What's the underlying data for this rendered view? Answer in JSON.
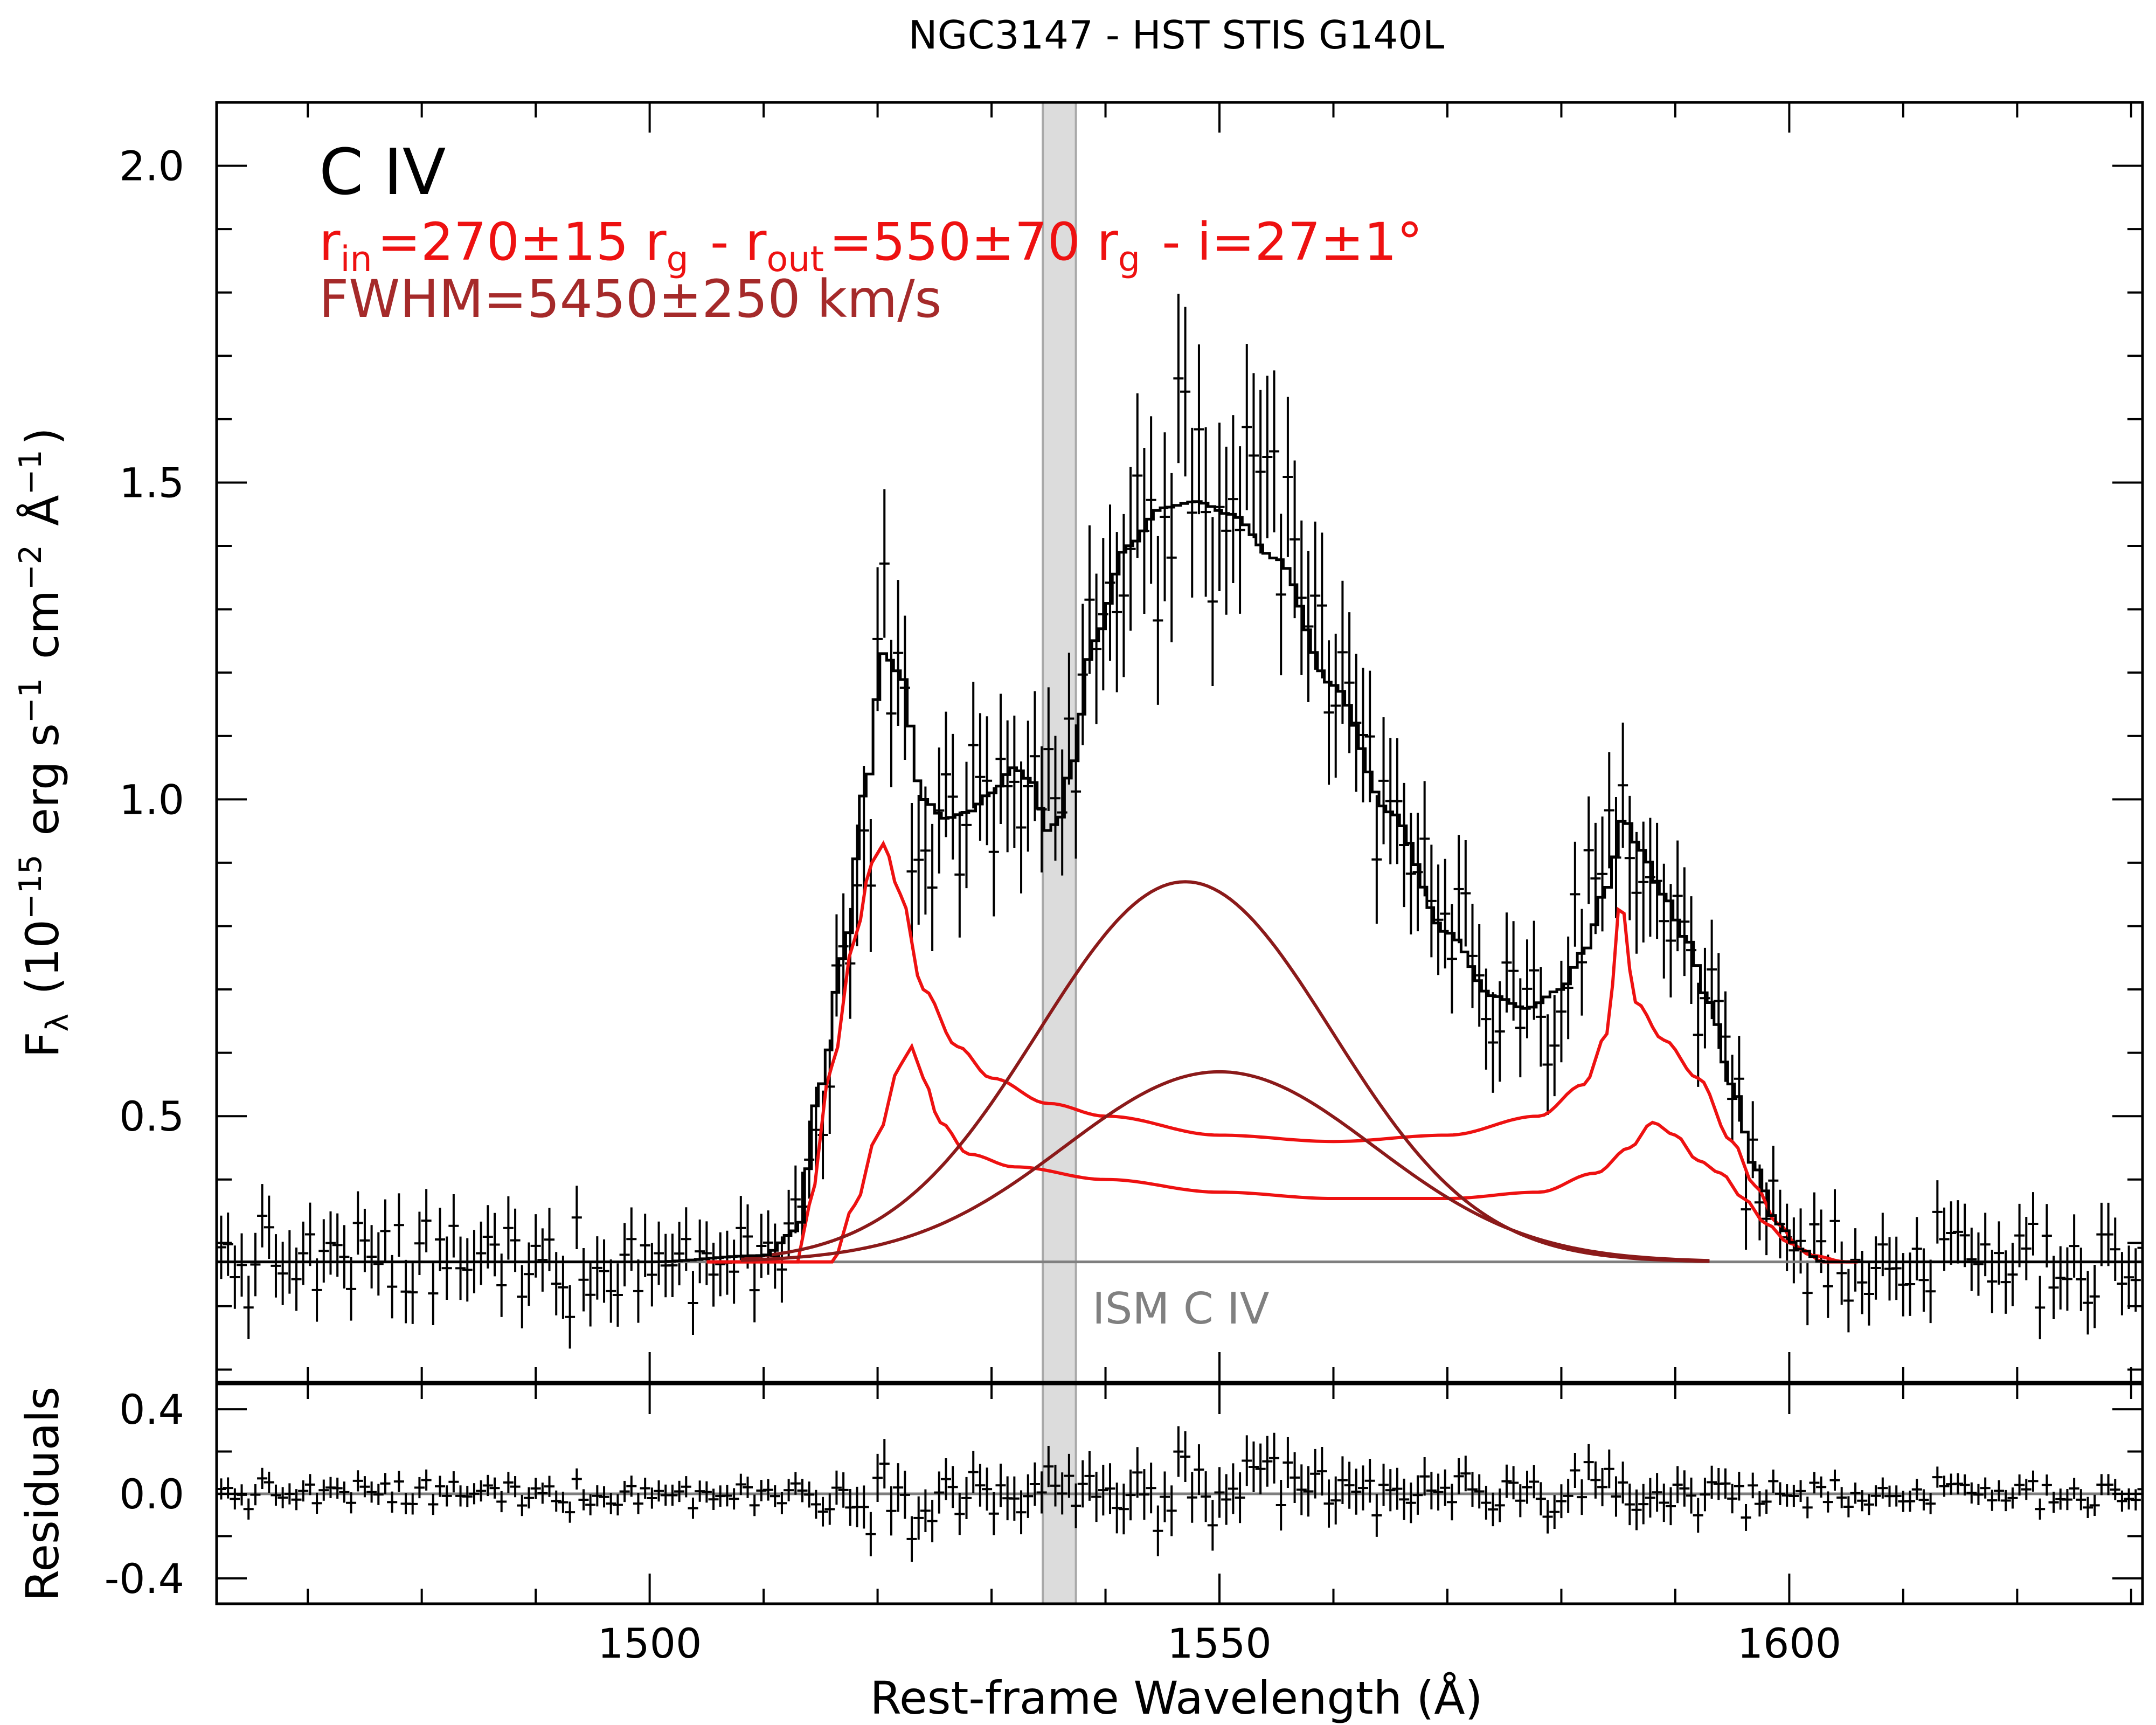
{
  "chart_data": {
    "type": "line",
    "title": "NGC3147 - HST STIS G140L",
    "xlabel": "Rest-frame Wavelength (Å)",
    "ylabel": "F",
    "ylabel_sub": "λ",
    "ylabel_units": [
      {
        "t": "(10",
        "s": "n"
      },
      {
        "t": "−15",
        "s": "sup"
      },
      {
        "t": " erg s",
        "s": "n"
      },
      {
        "t": "−1",
        "s": "sup"
      },
      {
        "t": " cm",
        "s": "n"
      },
      {
        "t": "−2",
        "s": "sup"
      },
      {
        "t": " Å",
        "s": "n"
      },
      {
        "t": "−1",
        "s": "sup"
      },
      {
        "t": ")",
        "s": "n"
      }
    ],
    "residuals_ylabel": "Residuals",
    "xlim": [
      1462,
      1631
    ],
    "ylim": [
      0.08,
      2.1
    ],
    "residuals_ylim": [
      -0.52,
      0.52
    ],
    "x_ticks": [
      1500,
      1550,
      1600
    ],
    "x_tick_labels": [
      "1500",
      "1550",
      "1600"
    ],
    "y_ticks": [
      0.5,
      1.0,
      1.5,
      2.0
    ],
    "y_tick_labels": [
      "0.5",
      "1.0",
      "1.5",
      "2.0"
    ],
    "residuals_ticks": [
      -0.4,
      0.0,
      0.4
    ],
    "residuals_tick_labels": [
      "-0.4",
      "0.0",
      "0.4"
    ],
    "continuum": 0.27,
    "ism_band": {
      "x0": 1534.5,
      "x1": 1537.4,
      "label": "ISM C IV"
    },
    "annotations": {
      "line_label": "C IV",
      "disk_params": [
        {
          "t": "r",
          "s": "n"
        },
        {
          "t": "in",
          "s": "sub"
        },
        {
          "t": "=270±15 r",
          "s": "n"
        },
        {
          "t": "g",
          "s": "sub"
        },
        {
          "t": " - r",
          "s": "n"
        },
        {
          "t": "out",
          "s": "sub"
        },
        {
          "t": "=550±70 r",
          "s": "n"
        },
        {
          "t": "g",
          "s": "sub"
        },
        {
          "t": " - i=27±1°",
          "s": "n"
        }
      ],
      "fwhm": "FWHM=5450±250 km/s"
    },
    "colors": {
      "data": "#000000",
      "disk_model": "#ee1111",
      "broad_gaussian": "#8b1a1a",
      "continuum": "#7f7f7f",
      "ism_band": "#dcdcdc",
      "fwhm_text": "#a52a2a"
    },
    "model_total": {
      "name": "Total model",
      "x": [
        1462,
        1500,
        1510,
        1513,
        1515,
        1517,
        1519,
        1520.5,
        1522,
        1524,
        1526,
        1528,
        1530,
        1532,
        1533.5,
        1535,
        1536,
        1537,
        1539,
        1542,
        1545,
        1548,
        1551,
        1555,
        1560,
        1565,
        1570,
        1574,
        1577,
        1580,
        1582,
        1584,
        1585.5,
        1587,
        1589,
        1591,
        1593,
        1595,
        1597,
        1599,
        1601,
        1603,
        1631
      ],
      "y": [
        0.27,
        0.27,
        0.28,
        0.32,
        0.55,
        0.75,
        1.02,
        1.23,
        1.2,
        1.0,
        0.97,
        0.98,
        1.01,
        1.05,
        1.03,
        0.95,
        0.97,
        1.05,
        1.25,
        1.4,
        1.46,
        1.47,
        1.45,
        1.38,
        1.18,
        0.98,
        0.79,
        0.69,
        0.67,
        0.7,
        0.76,
        0.86,
        0.97,
        0.92,
        0.85,
        0.78,
        0.68,
        0.55,
        0.42,
        0.33,
        0.29,
        0.27,
        0.27
      ]
    },
    "model_components": [
      {
        "name": "Disk (rest 1548)",
        "color": "disk_model",
        "x": [
          1462,
          1513,
          1514,
          1516,
          1518,
          1519.5,
          1520.5,
          1522,
          1524,
          1527,
          1530,
          1535,
          1540,
          1550,
          1560,
          1570,
          1578,
          1582,
          1584,
          1585.2,
          1586.5,
          1589,
          1592,
          1595,
          1597,
          1599,
          1601,
          1603,
          1631
        ],
        "y": [
          0.27,
          0.27,
          0.36,
          0.58,
          0.78,
          0.9,
          0.93,
          0.85,
          0.7,
          0.61,
          0.56,
          0.52,
          0.5,
          0.47,
          0.46,
          0.47,
          0.5,
          0.55,
          0.63,
          0.84,
          0.68,
          0.62,
          0.56,
          0.46,
          0.39,
          0.33,
          0.29,
          0.27,
          0.27
        ]
      },
      {
        "name": "Disk (rest 1551)",
        "color": "disk_model",
        "x": [
          1462,
          1516,
          1518,
          1520,
          1522,
          1523,
          1524,
          1525.5,
          1528,
          1532,
          1540,
          1550,
          1560,
          1570,
          1578,
          1583,
          1586,
          1588,
          1590,
          1592,
          1594,
          1596,
          1598,
          1600,
          1602,
          1605,
          1631
        ],
        "y": [
          0.27,
          0.27,
          0.36,
          0.47,
          0.58,
          0.61,
          0.56,
          0.49,
          0.44,
          0.42,
          0.4,
          0.38,
          0.37,
          0.37,
          0.38,
          0.41,
          0.45,
          0.49,
          0.47,
          0.43,
          0.41,
          0.37,
          0.33,
          0.3,
          0.28,
          0.27,
          0.27
        ]
      },
      {
        "name": "Broad Gaussian 1",
        "color": "broad_gaussian",
        "center": 1547,
        "fwhm": 30.3,
        "amp": 0.6
      },
      {
        "name": "Broad Gaussian 2",
        "color": "broad_gaussian",
        "center": 1550,
        "fwhm": 32.0,
        "amp": 0.3
      }
    ]
  }
}
